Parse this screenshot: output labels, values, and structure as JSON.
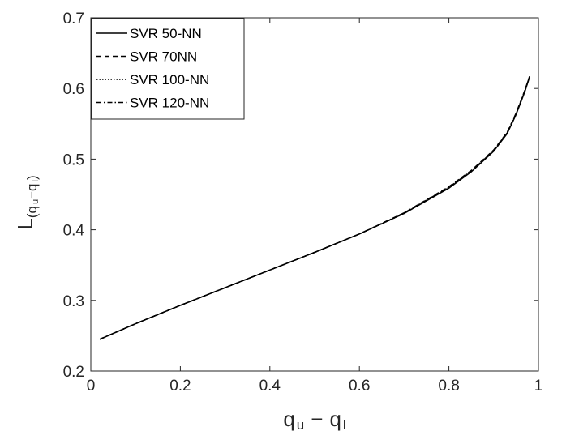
{
  "chart_data": {
    "type": "line",
    "title": "",
    "xlabel": {
      "main": "q",
      "sub1": "u",
      "minus": "−",
      "main2": "q",
      "sub2": "l"
    },
    "ylabel": {
      "main": "L",
      "sub_q1": "q",
      "sub_u": "u",
      "minus": "−",
      "sub_q2": "q",
      "sub_l": "l"
    },
    "xlim": [
      0,
      1
    ],
    "ylim": [
      0.2,
      0.7
    ],
    "xticks": [
      "0",
      "0.2",
      "0.4",
      "0.6",
      "0.8",
      "1"
    ],
    "yticks": [
      "0.2",
      "0.3",
      "0.4",
      "0.5",
      "0.6",
      "0.7"
    ],
    "grid": false,
    "legend_position": "top-left",
    "x": [
      0.02,
      0.1,
      0.2,
      0.3,
      0.4,
      0.5,
      0.6,
      0.7,
      0.8,
      0.85,
      0.9,
      0.93,
      0.95,
      0.97,
      0.98
    ],
    "series": [
      {
        "name": "SVR 50-NN",
        "style": "solid",
        "values": [
          0.245,
          0.267,
          0.293,
          0.318,
          0.343,
          0.368,
          0.394,
          0.423,
          0.459,
          0.482,
          0.511,
          0.536,
          0.563,
          0.596,
          0.616
        ]
      },
      {
        "name": "SVR 70NN",
        "style": "dashed",
        "values": [
          0.245,
          0.267,
          0.293,
          0.318,
          0.343,
          0.368,
          0.394,
          0.424,
          0.461,
          0.484,
          0.513,
          0.538,
          0.565,
          0.598,
          0.617
        ]
      },
      {
        "name": "SVR 100-NN",
        "style": "dotted",
        "values": [
          0.245,
          0.267,
          0.293,
          0.318,
          0.343,
          0.368,
          0.394,
          0.423,
          0.46,
          0.483,
          0.512,
          0.537,
          0.564,
          0.597,
          0.616
        ]
      },
      {
        "name": "SVR 120-NN",
        "style": "dashdot",
        "values": [
          0.245,
          0.267,
          0.293,
          0.318,
          0.343,
          0.368,
          0.394,
          0.424,
          0.46,
          0.483,
          0.512,
          0.537,
          0.564,
          0.597,
          0.617
        ]
      }
    ]
  }
}
